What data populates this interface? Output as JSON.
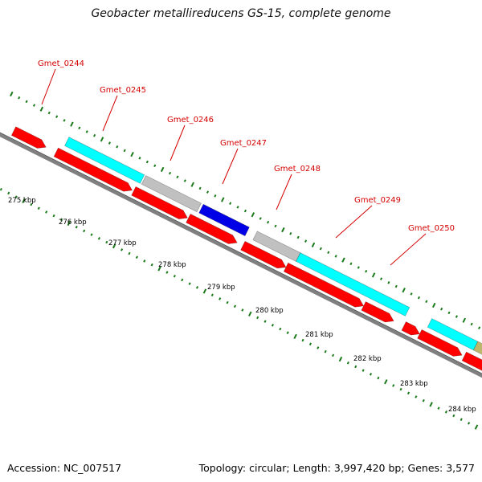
{
  "title": "Geobacter metallireducens GS-15, complete genome",
  "footer": {
    "accession": "Accession: NC_007517",
    "summary": "Topology: circular; Length: 3,997,420 bp; Genes: 3,577"
  },
  "colors": {
    "red_feature": "#ff0000",
    "cyan_feature": "#00ffff",
    "grey_feature": "#c0c0c0",
    "blue_feature": "#0000e6",
    "khaki_feature": "#bdb76b",
    "backbone": "#808080",
    "tick": "#1a7a1a",
    "label": "#d40000"
  },
  "gene_labels": [
    {
      "name": "Gmet_0244",
      "index": 0
    },
    {
      "name": "Gmet_0245",
      "index": 1
    },
    {
      "name": "Gmet_0246",
      "index": 2
    },
    {
      "name": "Gmet_0247",
      "index": 3
    },
    {
      "name": "Gmet_0248",
      "index": 4
    },
    {
      "name": "Gmet_0249",
      "index": 5
    },
    {
      "name": "Gmet_0250",
      "index": 6
    }
  ],
  "scale_labels": [
    "275 kbp",
    "276 kbp",
    "277 kbp",
    "278 kbp",
    "279 kbp",
    "280 kbp",
    "281 kbp",
    "282 kbp",
    "283 kbp",
    "284 kbp"
  ]
}
